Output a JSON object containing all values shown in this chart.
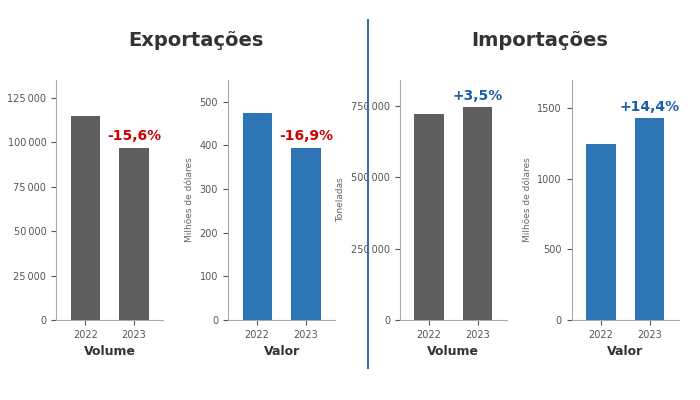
{
  "exp_volume": [
    115000,
    97000
  ],
  "exp_valor": [
    475,
    395
  ],
  "imp_volume": [
    720000,
    745000
  ],
  "imp_valor": [
    1250,
    1430
  ],
  "years": [
    "2022",
    "2023"
  ],
  "exp_vol_change": "-15,6%",
  "exp_val_change": "-16,9%",
  "imp_vol_change": "+3,5%",
  "imp_val_change": "+14,4%",
  "change_color_neg": "#cc0000",
  "change_color_pos": "#1a5fa8",
  "bar_color_gray": "#5e5e5e",
  "bar_color_blue": "#2e75b6",
  "title_exp": "Exportações",
  "title_imp": "Importações",
  "ylabel_vol": "Toneladas",
  "ylabel_val": "Milhões de dólares",
  "xlabel_vol": "Volume",
  "xlabel_val": "Valor",
  "background_color": "#ffffff",
  "title_fontsize": 14,
  "axis_fontsize": 7,
  "label_fontsize": 9,
  "change_fontsize": 10,
  "divider_color": "#3a6fa8"
}
